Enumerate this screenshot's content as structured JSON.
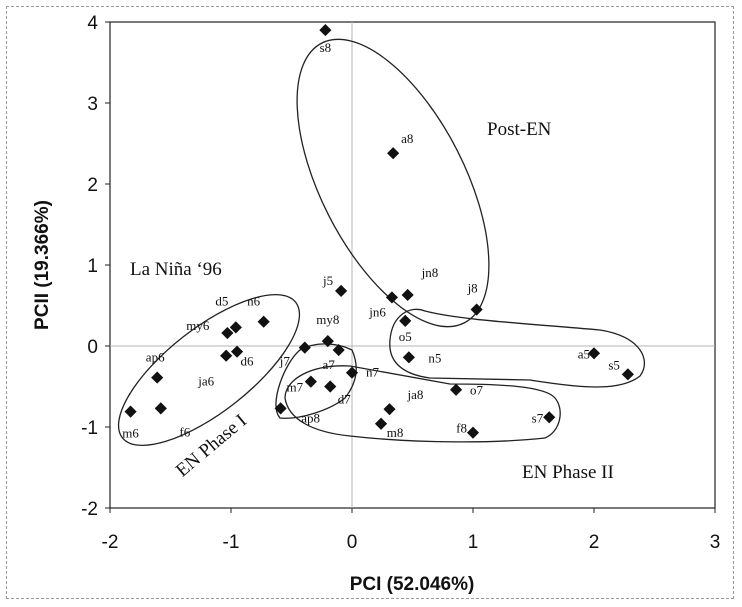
{
  "chart_data": {
    "type": "scatter",
    "title": "",
    "xlabel": "PCI (52.046%)",
    "ylabel": "PCII (19.366%)",
    "xlim": [
      -2,
      3
    ],
    "ylim": [
      -2,
      4
    ],
    "xticks": [
      "-2",
      "-1",
      "0",
      "1",
      "2",
      "3"
    ],
    "yticks": [
      "-2",
      "-1",
      "0",
      "1",
      "2",
      "3",
      "4"
    ],
    "grid": false,
    "zero_lines": true,
    "marker_color": "#111111",
    "points": [
      {
        "label": "s8",
        "x": -0.22,
        "y": 3.9
      },
      {
        "label": "a8",
        "x": 0.34,
        "y": 2.38
      },
      {
        "label": "j5",
        "x": -0.09,
        "y": 0.68
      },
      {
        "label": "jn6",
        "x": 0.33,
        "y": 0.6
      },
      {
        "label": "jn8",
        "x": 0.46,
        "y": 0.63
      },
      {
        "label": "j8",
        "x": 1.03,
        "y": 0.45
      },
      {
        "label": "o5",
        "x": 0.44,
        "y": 0.31
      },
      {
        "label": "n5",
        "x": 0.47,
        "y": -0.14
      },
      {
        "label": "a5",
        "x": 2.0,
        "y": -0.09
      },
      {
        "label": "s5",
        "x": 2.28,
        "y": -0.35
      },
      {
        "label": "o7",
        "x": 0.86,
        "y": -0.54
      },
      {
        "label": "s7",
        "x": 1.63,
        "y": -0.88
      },
      {
        "label": "f8",
        "x": 1.0,
        "y": -1.07
      },
      {
        "label": "ja8",
        "x": 0.31,
        "y": -0.78
      },
      {
        "label": "m8",
        "x": 0.24,
        "y": -0.96
      },
      {
        "label": "my8",
        "x": -0.2,
        "y": 0.06
      },
      {
        "label": "a7",
        "x": -0.11,
        "y": -0.05
      },
      {
        "label": "j7",
        "x": -0.39,
        "y": -0.02
      },
      {
        "label": "n7",
        "x": 0.0,
        "y": -0.33
      },
      {
        "label": "m7",
        "x": -0.34,
        "y": -0.44
      },
      {
        "label": "d7",
        "x": -0.18,
        "y": -0.5
      },
      {
        "label": "ap8",
        "x": -0.59,
        "y": -0.77
      },
      {
        "label": "n6",
        "x": -0.73,
        "y": 0.3
      },
      {
        "label": "d5",
        "x": -0.96,
        "y": 0.23
      },
      {
        "label": "my6",
        "x": -1.03,
        "y": 0.16
      },
      {
        "label": "d6",
        "x": -0.95,
        "y": -0.07
      },
      {
        "label": "ja6",
        "x": -1.04,
        "y": -0.12
      },
      {
        "label": "ap6",
        "x": -1.61,
        "y": -0.39
      },
      {
        "label": "f6",
        "x": -1.58,
        "y": -0.77
      },
      {
        "label": "m6",
        "x": -1.83,
        "y": -0.81
      }
    ],
    "groups": [
      {
        "name": "Post-EN"
      },
      {
        "name": "La Niña ‘96"
      },
      {
        "name": "EN Phase I"
      },
      {
        "name": "EN Phase II"
      }
    ]
  }
}
